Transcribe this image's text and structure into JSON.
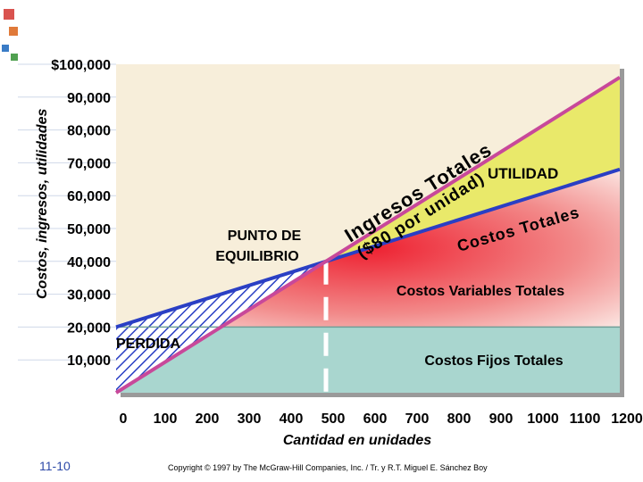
{
  "chart_data": {
    "type": "line",
    "title": "",
    "xlabel": "Cantidad en unidades",
    "ylabel": "Costos, ingresos, utilidades",
    "xlim": [
      0,
      1200
    ],
    "ylim": [
      0,
      100000
    ],
    "x_ticks": [
      "0",
      "100",
      "200",
      "300",
      "400",
      "500",
      "600",
      "700",
      "800",
      "900",
      "1000",
      "1100",
      "1200"
    ],
    "y_ticks": [
      {
        "value": 100000,
        "label": "$100,000"
      },
      {
        "value": 90000,
        "label": "90,000"
      },
      {
        "value": 80000,
        "label": "80,000"
      },
      {
        "value": 70000,
        "label": "70,000"
      },
      {
        "value": 60000,
        "label": "60,000"
      },
      {
        "value": 50000,
        "label": "50,000"
      },
      {
        "value": 40000,
        "label": "40,000"
      },
      {
        "value": 30000,
        "label": "30,000"
      },
      {
        "value": 20000,
        "label": "20,000"
      },
      {
        "value": 10000,
        "label": "10,000"
      }
    ],
    "series": [
      {
        "key": "revenue",
        "x": [
          0,
          1200
        ],
        "y": [
          0,
          96000
        ],
        "color": "#c8489a"
      },
      {
        "key": "total_cost",
        "x": [
          0,
          1200
        ],
        "y": [
          20000,
          68000
        ],
        "color": "#2a3fc4"
      },
      {
        "key": "fixed_cost",
        "x": [
          0,
          1200
        ],
        "y": [
          20000,
          20000
        ],
        "color": "#8fc4bb"
      }
    ],
    "break_even": {
      "x": 500,
      "y": 40000
    },
    "annotations": {
      "revenue_line1": "Ingresos Totales",
      "revenue_line2": "($80 por unidad)",
      "profit": "UTILIDAD",
      "total_cost": "Costos Totales",
      "break_even_line1": "PUNTO DE",
      "break_even_line2": "EQUILIBRIO",
      "variable_costs": "Costos Variables Totales",
      "fixed_costs": "Costos Fijos Totales",
      "loss": "PERDIDA"
    },
    "colors": {
      "profit_area": "#e9e96a",
      "variable_area": "#ee2030",
      "fixed_area": "#a9d6cf",
      "upper_area": "#f7eeda",
      "revenue_line": "#c8489a",
      "cost_line": "#2a3fc4"
    }
  },
  "footer": {
    "page_number": "11-10",
    "copyright": "Copyright © 1997 by The McGraw-Hill Companies, Inc. / Tr. y R.T. Miguel E. Sánchez Boy"
  }
}
